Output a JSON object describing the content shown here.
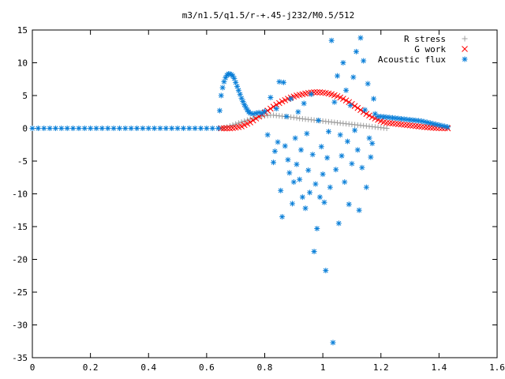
{
  "chart_data": {
    "type": "scatter",
    "title": "m3/n1.5/q1.5/r-+.45-j232/M0.5/512",
    "xlabel": "",
    "ylabel": "",
    "xlim": [
      0,
      1.6
    ],
    "ylim": [
      -35,
      15
    ],
    "x_ticks": [
      "0",
      "0.2",
      "0.4",
      "0.6",
      "0.8",
      "1",
      "1.2",
      "1.4",
      "1.6"
    ],
    "y_ticks": [
      "15",
      "10",
      "5",
      "0",
      "-5",
      "-10",
      "-15",
      "-20",
      "-25",
      "-30",
      "-35"
    ],
    "grid": false,
    "legend_position": "top-right",
    "series": [
      {
        "name": "R stress",
        "marker": "plus",
        "color": "#a0a0a0",
        "points": [
          [
            0.65,
            0.0
          ],
          [
            0.66,
            0.1
          ],
          [
            0.67,
            0.2
          ],
          [
            0.68,
            0.35
          ],
          [
            0.69,
            0.5
          ],
          [
            0.7,
            0.65
          ],
          [
            0.71,
            0.8
          ],
          [
            0.72,
            0.95
          ],
          [
            0.73,
            1.1
          ],
          [
            0.74,
            1.25
          ],
          [
            0.75,
            1.4
          ],
          [
            0.76,
            1.55
          ],
          [
            0.77,
            1.65
          ],
          [
            0.78,
            1.75
          ],
          [
            0.79,
            1.85
          ],
          [
            0.8,
            1.9
          ],
          [
            0.81,
            1.95
          ],
          [
            0.82,
            2.0
          ],
          [
            0.83,
            2.0
          ],
          [
            0.84,
            1.95
          ],
          [
            0.85,
            1.9
          ],
          [
            0.86,
            1.85
          ],
          [
            0.87,
            1.8
          ],
          [
            0.88,
            1.75
          ],
          [
            0.89,
            1.7
          ],
          [
            0.9,
            1.65
          ],
          [
            0.91,
            1.6
          ],
          [
            0.92,
            1.5
          ],
          [
            0.93,
            1.45
          ],
          [
            0.94,
            1.4
          ],
          [
            0.95,
            1.35
          ],
          [
            0.96,
            1.3
          ],
          [
            0.97,
            1.25
          ],
          [
            0.98,
            1.2
          ],
          [
            0.99,
            1.15
          ],
          [
            1.0,
            1.1
          ],
          [
            1.01,
            1.05
          ],
          [
            1.02,
            1.0
          ],
          [
            1.03,
            0.95
          ],
          [
            1.04,
            0.9
          ],
          [
            1.05,
            0.85
          ],
          [
            1.06,
            0.8
          ],
          [
            1.07,
            0.75
          ],
          [
            1.08,
            0.7
          ],
          [
            1.09,
            0.65
          ],
          [
            1.1,
            0.6
          ],
          [
            1.11,
            0.55
          ],
          [
            1.12,
            0.5
          ],
          [
            1.13,
            0.45
          ],
          [
            1.14,
            0.4
          ],
          [
            1.15,
            0.35
          ],
          [
            1.16,
            0.3
          ],
          [
            1.17,
            0.25
          ],
          [
            1.18,
            0.2
          ],
          [
            1.19,
            0.15
          ],
          [
            1.2,
            0.1
          ],
          [
            1.21,
            0.05
          ],
          [
            1.22,
            0.0
          ]
        ]
      },
      {
        "name": "G work",
        "marker": "cross",
        "color": "#ff0000",
        "points": [
          [
            0.65,
            0.0
          ],
          [
            0.66,
            0.0
          ],
          [
            0.67,
            0.0
          ],
          [
            0.68,
            0.0
          ],
          [
            0.69,
            0.05
          ],
          [
            0.7,
            0.1
          ],
          [
            0.71,
            0.2
          ],
          [
            0.72,
            0.3
          ],
          [
            0.73,
            0.5
          ],
          [
            0.74,
            0.7
          ],
          [
            0.75,
            0.9
          ],
          [
            0.76,
            1.2
          ],
          [
            0.77,
            1.5
          ],
          [
            0.78,
            1.8
          ],
          [
            0.79,
            2.1
          ],
          [
            0.8,
            2.4
          ],
          [
            0.81,
            2.7
          ],
          [
            0.82,
            3.0
          ],
          [
            0.83,
            3.3
          ],
          [
            0.84,
            3.6
          ],
          [
            0.85,
            3.85
          ],
          [
            0.86,
            4.1
          ],
          [
            0.87,
            4.3
          ],
          [
            0.88,
            4.5
          ],
          [
            0.89,
            4.7
          ],
          [
            0.9,
            4.85
          ],
          [
            0.91,
            5.0
          ],
          [
            0.92,
            5.1
          ],
          [
            0.93,
            5.2
          ],
          [
            0.94,
            5.3
          ],
          [
            0.95,
            5.4
          ],
          [
            0.96,
            5.45
          ],
          [
            0.97,
            5.5
          ],
          [
            0.98,
            5.5
          ],
          [
            0.99,
            5.5
          ],
          [
            1.0,
            5.45
          ],
          [
            1.01,
            5.4
          ],
          [
            1.02,
            5.3
          ],
          [
            1.03,
            5.2
          ],
          [
            1.04,
            5.05
          ],
          [
            1.05,
            4.9
          ],
          [
            1.06,
            4.7
          ],
          [
            1.07,
            4.5
          ],
          [
            1.08,
            4.25
          ],
          [
            1.09,
            4.0
          ],
          [
            1.1,
            3.7
          ],
          [
            1.11,
            3.4
          ],
          [
            1.12,
            3.1
          ],
          [
            1.13,
            2.8
          ],
          [
            1.14,
            2.5
          ],
          [
            1.15,
            2.2
          ],
          [
            1.16,
            1.95
          ],
          [
            1.17,
            1.7
          ],
          [
            1.18,
            1.5
          ],
          [
            1.19,
            1.3
          ],
          [
            1.2,
            1.1
          ],
          [
            1.21,
            0.95
          ],
          [
            1.22,
            0.85
          ],
          [
            1.23,
            0.8
          ],
          [
            1.24,
            0.75
          ],
          [
            1.25,
            0.7
          ],
          [
            1.26,
            0.65
          ],
          [
            1.27,
            0.6
          ],
          [
            1.28,
            0.55
          ],
          [
            1.29,
            0.5
          ],
          [
            1.3,
            0.45
          ],
          [
            1.31,
            0.4
          ],
          [
            1.32,
            0.35
          ],
          [
            1.33,
            0.3
          ],
          [
            1.34,
            0.25
          ],
          [
            1.35,
            0.2
          ],
          [
            1.36,
            0.15
          ],
          [
            1.37,
            0.12
          ],
          [
            1.38,
            0.09
          ],
          [
            1.39,
            0.06
          ],
          [
            1.4,
            0.04
          ],
          [
            1.41,
            0.02
          ],
          [
            1.42,
            0.01
          ],
          [
            1.43,
            0.0
          ]
        ]
      },
      {
        "name": "Acoustic flux",
        "marker": "star",
        "color": "#0a7fd8",
        "points": [
          [
            0.0,
            0.0
          ],
          [
            0.02,
            0.0
          ],
          [
            0.04,
            0.0
          ],
          [
            0.06,
            0.0
          ],
          [
            0.08,
            0.0
          ],
          [
            0.1,
            0.0
          ],
          [
            0.12,
            0.0
          ],
          [
            0.14,
            0.0
          ],
          [
            0.16,
            0.0
          ],
          [
            0.18,
            0.0
          ],
          [
            0.2,
            0.0
          ],
          [
            0.22,
            0.0
          ],
          [
            0.24,
            0.0
          ],
          [
            0.26,
            0.0
          ],
          [
            0.28,
            0.0
          ],
          [
            0.3,
            0.0
          ],
          [
            0.32,
            0.0
          ],
          [
            0.34,
            0.0
          ],
          [
            0.36,
            0.0
          ],
          [
            0.38,
            0.0
          ],
          [
            0.4,
            0.0
          ],
          [
            0.42,
            0.0
          ],
          [
            0.44,
            0.0
          ],
          [
            0.46,
            0.0
          ],
          [
            0.48,
            0.0
          ],
          [
            0.5,
            0.0
          ],
          [
            0.52,
            0.0
          ],
          [
            0.54,
            0.0
          ],
          [
            0.56,
            0.0
          ],
          [
            0.58,
            0.0
          ],
          [
            0.6,
            0.0
          ],
          [
            0.62,
            0.0
          ],
          [
            0.64,
            0.0
          ],
          [
            0.645,
            2.7
          ],
          [
            0.65,
            5.0
          ],
          [
            0.655,
            6.2
          ],
          [
            0.66,
            7.1
          ],
          [
            0.665,
            7.7
          ],
          [
            0.67,
            8.1
          ],
          [
            0.675,
            8.3
          ],
          [
            0.68,
            8.3
          ],
          [
            0.685,
            8.2
          ],
          [
            0.69,
            8.0
          ],
          [
            0.695,
            7.6
          ],
          [
            0.7,
            7.0
          ],
          [
            0.705,
            6.4
          ],
          [
            0.71,
            5.8
          ],
          [
            0.715,
            5.2
          ],
          [
            0.72,
            4.6
          ],
          [
            0.725,
            4.1
          ],
          [
            0.73,
            3.6
          ],
          [
            0.735,
            3.2
          ],
          [
            0.74,
            2.8
          ],
          [
            0.745,
            2.5
          ],
          [
            0.75,
            2.3
          ],
          [
            0.76,
            2.2
          ],
          [
            0.77,
            2.3
          ],
          [
            0.78,
            2.4
          ],
          [
            0.79,
            2.3
          ],
          [
            0.8,
            2.6
          ],
          [
            0.81,
            -1.0
          ],
          [
            0.82,
            4.7
          ],
          [
            0.83,
            -5.2
          ],
          [
            0.835,
            -3.5
          ],
          [
            0.84,
            3.0
          ],
          [
            0.845,
            -2.1
          ],
          [
            0.85,
            7.1
          ],
          [
            0.855,
            -9.5
          ],
          [
            0.86,
            -13.5
          ],
          [
            0.865,
            7.0
          ],
          [
            0.87,
            -2.7
          ],
          [
            0.875,
            1.8
          ],
          [
            0.88,
            -4.8
          ],
          [
            0.885,
            -6.8
          ],
          [
            0.89,
            4.5
          ],
          [
            0.895,
            -11.5
          ],
          [
            0.9,
            -8.2
          ],
          [
            0.905,
            -1.5
          ],
          [
            0.91,
            -5.5
          ],
          [
            0.915,
            2.5
          ],
          [
            0.92,
            -7.8
          ],
          [
            0.925,
            -3.3
          ],
          [
            0.93,
            -10.5
          ],
          [
            0.935,
            3.8
          ],
          [
            0.94,
            -12.2
          ],
          [
            0.945,
            -0.8
          ],
          [
            0.95,
            -6.4
          ],
          [
            0.955,
            -9.8
          ],
          [
            0.96,
            5.2
          ],
          [
            0.965,
            -4.0
          ],
          [
            0.97,
            -18.8
          ],
          [
            0.975,
            -8.5
          ],
          [
            0.98,
            -15.3
          ],
          [
            0.985,
            1.2
          ],
          [
            0.99,
            -10.5
          ],
          [
            0.995,
            -2.8
          ],
          [
            1.0,
            -7.0
          ],
          [
            1.005,
            -11.3
          ],
          [
            1.01,
            -21.7
          ],
          [
            1.015,
            -4.5
          ],
          [
            1.02,
            -0.5
          ],
          [
            1.025,
            -9.0
          ],
          [
            1.03,
            13.4
          ],
          [
            1.035,
            -32.7
          ],
          [
            1.04,
            4.0
          ],
          [
            1.045,
            -6.3
          ],
          [
            1.05,
            8.0
          ],
          [
            1.055,
            -14.5
          ],
          [
            1.06,
            -1.0
          ],
          [
            1.065,
            -4.2
          ],
          [
            1.07,
            10.0
          ],
          [
            1.075,
            -8.2
          ],
          [
            1.08,
            5.8
          ],
          [
            1.085,
            -2.0
          ],
          [
            1.09,
            -11.6
          ],
          [
            1.095,
            3.5
          ],
          [
            1.1,
            -5.4
          ],
          [
            1.105,
            7.8
          ],
          [
            1.11,
            -0.3
          ],
          [
            1.115,
            11.7
          ],
          [
            1.12,
            -3.3
          ],
          [
            1.125,
            -12.5
          ],
          [
            1.13,
            13.8
          ],
          [
            1.135,
            -6.0
          ],
          [
            1.14,
            10.3
          ],
          [
            1.145,
            2.8
          ],
          [
            1.15,
            -9.0
          ],
          [
            1.155,
            6.8
          ],
          [
            1.16,
            -1.5
          ],
          [
            1.165,
            -4.4
          ],
          [
            1.17,
            -2.3
          ],
          [
            1.175,
            4.5
          ],
          [
            1.18,
            2.2
          ],
          [
            1.19,
            1.8
          ],
          [
            1.2,
            1.8
          ],
          [
            1.21,
            1.75
          ],
          [
            1.22,
            1.7
          ],
          [
            1.23,
            1.65
          ],
          [
            1.24,
            1.6
          ],
          [
            1.25,
            1.55
          ],
          [
            1.26,
            1.5
          ],
          [
            1.27,
            1.45
          ],
          [
            1.28,
            1.4
          ],
          [
            1.29,
            1.35
          ],
          [
            1.3,
            1.3
          ],
          [
            1.31,
            1.25
          ],
          [
            1.32,
            1.2
          ],
          [
            1.33,
            1.15
          ],
          [
            1.34,
            1.1
          ],
          [
            1.35,
            1.0
          ],
          [
            1.36,
            0.9
          ],
          [
            1.37,
            0.8
          ],
          [
            1.38,
            0.7
          ],
          [
            1.39,
            0.6
          ],
          [
            1.4,
            0.5
          ],
          [
            1.41,
            0.4
          ],
          [
            1.42,
            0.3
          ],
          [
            1.43,
            0.2
          ]
        ]
      }
    ]
  }
}
